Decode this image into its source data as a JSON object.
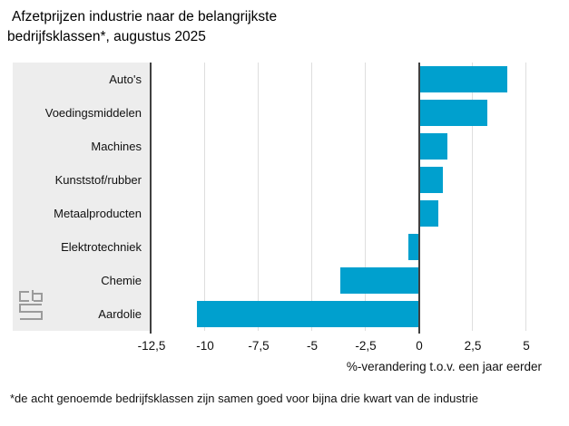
{
  "header": {
    "title_line1": "Afzetprijzen industrie naar de belangrijkste",
    "title_line2": "bedrijfsklassen*, augustus 2025"
  },
  "chart_data": {
    "type": "bar",
    "orientation": "horizontal",
    "categories": [
      "Auto's",
      "Voedingsmiddelen",
      "Machines",
      "Kunststof/rubber",
      "Metaalproducten",
      "Elektrotechniek",
      "Chemie",
      "Aardolie"
    ],
    "values": [
      4.1,
      3.2,
      1.3,
      1.1,
      0.9,
      -0.5,
      -3.7,
      -10.4
    ],
    "title": "Afzetprijzen industrie naar de belangrijkste bedrijfsklassen*, augustus 2025",
    "xlabel": "%-verandering t.o.v. een jaar eerder",
    "ylabel": "",
    "xlim": [
      -12.5,
      6.4
    ],
    "ticks": [
      -12.5,
      -10,
      -7.5,
      -5,
      -2.5,
      0,
      2.5,
      5
    ],
    "tick_labels": [
      "-12,5",
      "-10",
      "-7,5",
      "-5",
      "-2,5",
      "0",
      "2,5",
      "5"
    ],
    "grid": true,
    "legend": "none",
    "colors": {
      "bar": "#00a0ce",
      "zero_line": "#404040",
      "gridline": "#dedede",
      "label_panel": "#ededed",
      "logo": "#9b9b9b"
    }
  },
  "footnote": {
    "text": "*de acht genoemde bedrijfsklassen zijn samen goed voor bijna drie kwart van de industrie"
  },
  "logo": {
    "name": "CBS"
  }
}
